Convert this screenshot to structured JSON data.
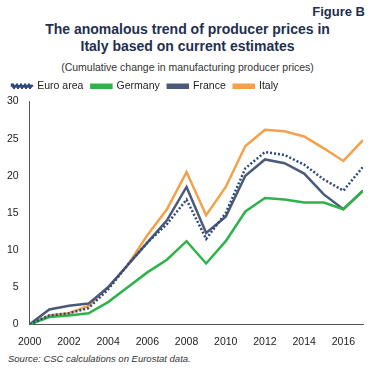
{
  "chart_data": {
    "type": "line",
    "figure_label": "Figure B",
    "title": "The anomalous trend of producer prices in Italy based on current estimates",
    "subtitle": "(Cumulative change in manufacturing producer prices)",
    "source": "Source: CSC calculations on Eurostat data.",
    "x": [
      2000,
      2001,
      2002,
      2003,
      2004,
      2005,
      2006,
      2007,
      2008,
      2009,
      2010,
      2011,
      2012,
      2013,
      2014,
      2015,
      2016,
      2017
    ],
    "series": [
      {
        "name": "Euro area",
        "color": "#2e4a7d",
        "line_style": "dotted",
        "values": [
          0,
          1.2,
          1.5,
          2.2,
          4.7,
          8,
          11,
          13.5,
          16.8,
          11.5,
          15,
          21,
          23.2,
          22.8,
          21.5,
          19.5,
          18,
          21.2
        ]
      },
      {
        "name": "Germany",
        "color": "#2eb24a",
        "line_style": "solid",
        "values": [
          0,
          1,
          1.2,
          1.5,
          3,
          5,
          7,
          8.7,
          11.2,
          8.2,
          11.2,
          15.2,
          17,
          16.8,
          16.4,
          16.4,
          15.5,
          18
        ]
      },
      {
        "name": "France",
        "color": "#4a5a78",
        "line_style": "solid",
        "values": [
          0,
          2,
          2.5,
          2.8,
          5,
          8,
          11,
          14,
          18.5,
          12.3,
          14.5,
          20,
          22.2,
          21.7,
          20.3,
          17.5,
          15.5,
          18
        ]
      },
      {
        "name": "Italy",
        "color": "#f5a04a",
        "line_style": "solid",
        "values": [
          0,
          1.2,
          1.5,
          2.5,
          5,
          8,
          12,
          15.5,
          20.5,
          14.7,
          18.5,
          24,
          26.2,
          26,
          25.3,
          23.7,
          22,
          24.8
        ]
      }
    ],
    "xlim": [
      2000,
      2017
    ],
    "xticks": [
      2000,
      2002,
      2004,
      2006,
      2008,
      2010,
      2012,
      2014,
      2016
    ],
    "ylim": [
      0,
      30
    ],
    "yticks": [
      0,
      5,
      10,
      15,
      20,
      25,
      30
    ],
    "grid": false,
    "legend": "top-left",
    "marker": "none"
  }
}
